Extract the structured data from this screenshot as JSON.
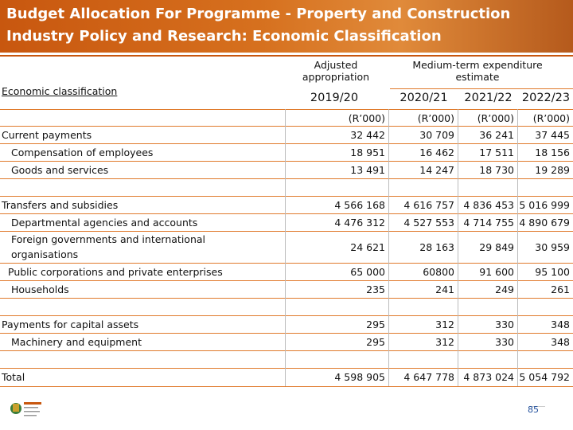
{
  "header": {
    "title": [
      "Budget Allocation For Programme - Property and Construction",
      "Industry Policy and Research: Economic Classification"
    ]
  },
  "table": {
    "row_header": "Economic classification",
    "group_headers": [
      "Adjusted appropriation",
      "Medium-term expenditure estimate"
    ],
    "years": [
      "2019/20",
      "2020/21",
      "2021/22",
      "2022/23"
    ],
    "units": [
      "(R’000)",
      "(R’000)",
      "(R’000)",
      "(R’000)"
    ],
    "rows": [
      {
        "label": "Current payments",
        "values": [
          "32 442",
          "30 709",
          "36 241",
          "37 445"
        ]
      },
      {
        "label": "Compensation of employees",
        "values": [
          "18 951",
          "16 462",
          "17 511",
          "18 156"
        ]
      },
      {
        "label": "Goods and services",
        "values": [
          "13 491",
          "14 247",
          "18 730",
          "19 289"
        ]
      },
      {
        "label": "Transfers and subsidies",
        "values": [
          "4 566 168",
          "4 616 757",
          "4 836 453",
          "5 016 999"
        ]
      },
      {
        "label": "Departmental agencies and accounts",
        "values": [
          "4 476 312",
          "4 527 553",
          "4 714 755",
          "4 890 679"
        ]
      },
      {
        "label": "Foreign governments and international organisations",
        "values": [
          "24 621",
          "28 163",
          "29 849",
          "30 959"
        ]
      },
      {
        "label": "Public corporations and private enterprises",
        "values": [
          "65 000",
          "60800",
          "91 600",
          "95 100"
        ]
      },
      {
        "label": "Households",
        "values": [
          "235",
          "241",
          "249",
          "261"
        ]
      },
      {
        "label": "Payments for capital assets",
        "values": [
          "295",
          "312",
          "330",
          "348"
        ]
      },
      {
        "label": "Machinery and equipment",
        "values": [
          "295",
          "312",
          "330",
          "348"
        ]
      },
      {
        "label": "Total",
        "values": [
          "4 598 905",
          "4 647 778",
          "4 873 024",
          "5 054 792"
        ]
      }
    ]
  },
  "footer": {
    "page": "85"
  }
}
